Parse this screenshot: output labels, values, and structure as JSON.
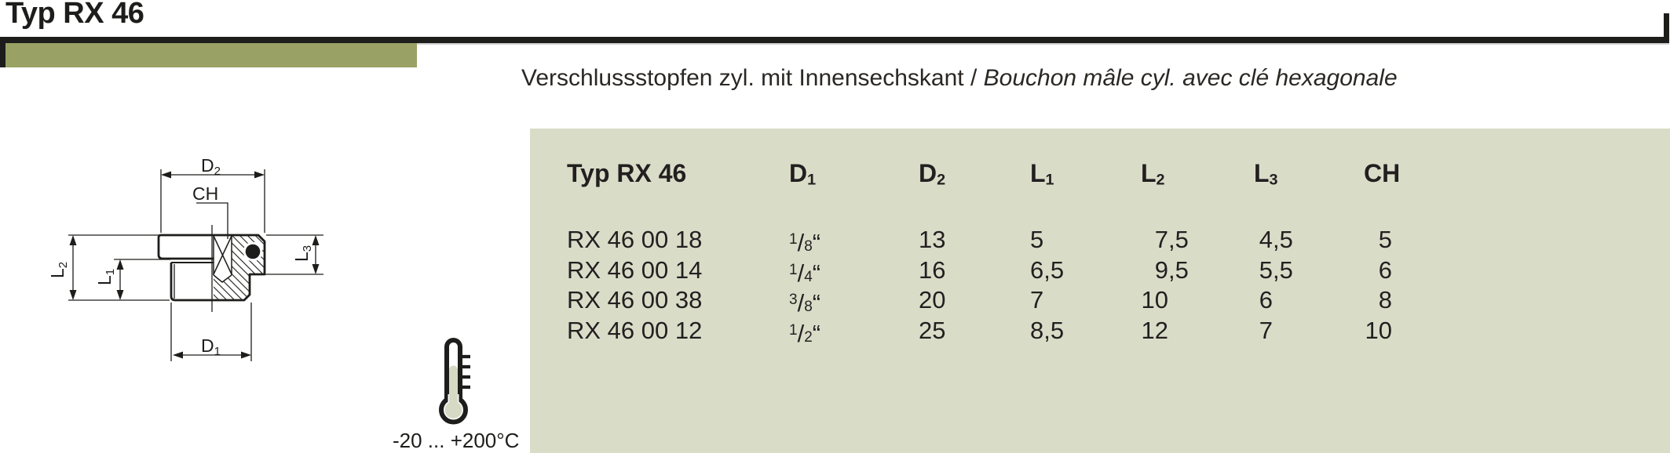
{
  "header": {
    "title": "Typ RX 46",
    "rule_color": "#1d1d1b",
    "accent_color": "#9aa164"
  },
  "subtitle": {
    "de": "Verschlussstopfen zyl. mit Innensechskant",
    "separator": " / ",
    "fr": "Bouchon mâle cyl. avec clé hexagonale"
  },
  "drawing": {
    "labels": {
      "d2": {
        "base": "D",
        "sub": "2"
      },
      "ch": "CH",
      "l2": {
        "base": "L",
        "sub": "2"
      },
      "l1": {
        "base": "L",
        "sub": "1"
      },
      "l3": {
        "base": "L",
        "sub": "3"
      },
      "d1": {
        "base": "D",
        "sub": "1"
      }
    }
  },
  "thermometer": {
    "range": "-20 ... +200°C"
  },
  "table": {
    "bg_color": "#d9ddc8",
    "header_title": "Typ RX 46",
    "columns": [
      {
        "key": "d1",
        "base": "D",
        "sub": "1"
      },
      {
        "key": "d2",
        "base": "D",
        "sub": "2"
      },
      {
        "key": "l1",
        "base": "L",
        "sub": "1"
      },
      {
        "key": "l2",
        "base": "L",
        "sub": "2"
      },
      {
        "key": "l3",
        "base": "L",
        "sub": "3"
      },
      {
        "key": "ch",
        "base": "CH",
        "sub": ""
      }
    ],
    "inch_mark": "“",
    "rows": [
      {
        "type": "RX 46 00 18",
        "d1_num": "1",
        "d1_den": "8",
        "d2": "13",
        "l1": "5",
        "l2": "7,5",
        "l3": "4,5",
        "ch": "5"
      },
      {
        "type": "RX 46 00 14",
        "d1_num": "1",
        "d1_den": "4",
        "d2": "16",
        "l1": "6,5",
        "l2": "9,5",
        "l3": "5,5",
        "ch": "6"
      },
      {
        "type": "RX 46 00 38",
        "d1_num": "3",
        "d1_den": "8",
        "d2": "20",
        "l1": "7",
        "l2": "10",
        "l3": "6",
        "ch": "8"
      },
      {
        "type": "RX 46 00 12",
        "d1_num": "1",
        "d1_den": "2",
        "d2": "25",
        "l1": "8,5",
        "l2": "12",
        "l3": "7",
        "ch": "10"
      }
    ]
  }
}
